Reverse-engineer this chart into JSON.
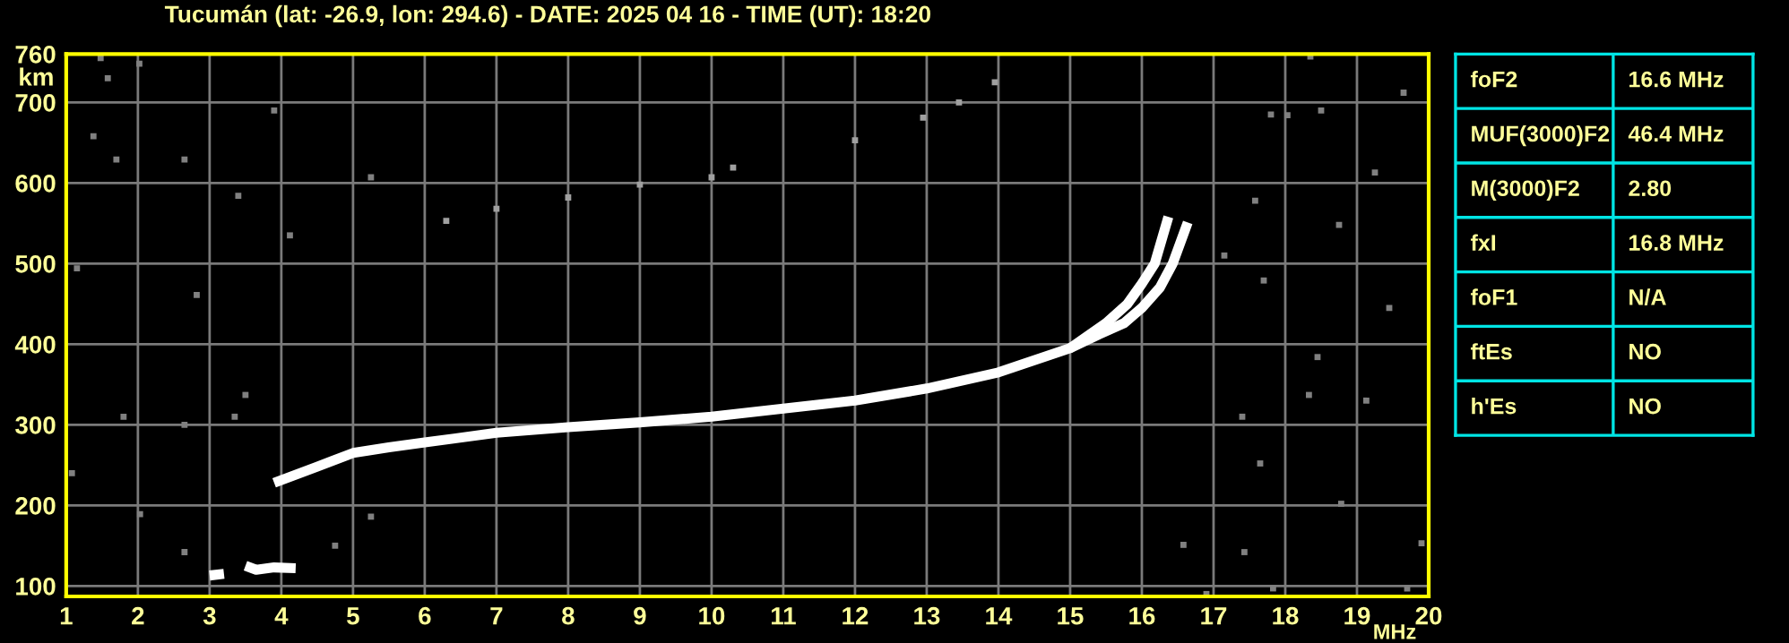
{
  "chart_data": [
    {
      "type": "line",
      "title": "Tucumán (lat: -26.9, lon: 294.6) - DATE: 2025 04 16 - TIME (UT): 18:20",
      "xlabel": "MHz",
      "ylabel": "km",
      "xlim": [
        1,
        20
      ],
      "ylim": [
        87,
        760
      ],
      "xticks": [
        1,
        2,
        3,
        4,
        5,
        6,
        7,
        8,
        9,
        10,
        11,
        12,
        13,
        14,
        15,
        16,
        17,
        18,
        19,
        20
      ],
      "yticks": [
        100,
        200,
        300,
        400,
        500,
        600,
        700,
        760
      ],
      "grid": true,
      "legend": false,
      "line_style": "solid",
      "series": [
        {
          "type": "line",
          "color": "#ffffff",
          "x": [
            3.9,
            4.2,
            4.5,
            5.0,
            5.5,
            6.0,
            7.0,
            8.0,
            9.0,
            10.0,
            11.0,
            12.0,
            13.0,
            14.0,
            15.0,
            15.5,
            15.8,
            16.0,
            16.18,
            16.37
          ],
          "values": [
            228,
            238,
            248,
            265,
            272,
            278,
            290,
            297,
            303,
            310,
            320,
            330,
            345,
            365,
            395,
            426,
            450,
            475,
            500,
            558
          ]
        },
        {
          "type": "line",
          "color": "#ffffff",
          "x": [
            15.0,
            15.4,
            15.75,
            16.0,
            16.25,
            16.43,
            16.64
          ],
          "values": [
            395,
            412,
            426,
            445,
            470,
            500,
            551
          ]
        },
        {
          "type": "line",
          "color": "#ffffff",
          "x": [
            3.0,
            3.2,
            3.3,
            3.5,
            3.65,
            3.9,
            4.2
          ],
          "values": [
            113,
            115,
            null,
            125,
            120,
            123,
            122
          ]
        },
        {
          "type": "scatter",
          "marker": "square",
          "color": "#a0a0a0",
          "x": [
            6.3,
            7.0,
            8.0,
            9.0,
            10.0,
            10.3,
            12.0,
            12.95,
            13.45,
            13.95
          ],
          "values": [
            553,
            568,
            582,
            598,
            607,
            619,
            653,
            681,
            700,
            725
          ]
        },
        {
          "type": "scatter",
          "marker": "square",
          "color": "#808080",
          "x": [
            1.48,
            1.58,
            2.02,
            1.38,
            1.7,
            2.65,
            3.4,
            3.9,
            5.25,
            4.12,
            1.15,
            2.82,
            1.08,
            1.8,
            2.65,
            3.35,
            3.5,
            2.03,
            2.65,
            5.25,
            4.75,
            18.35,
            18.75,
            18.03,
            17.8,
            17.58,
            19.25,
            19.65,
            18.5,
            17.15,
            17.7,
            19.45,
            18.45,
            17.4,
            17.65,
            18.78,
            17.43,
            17.83,
            16.9,
            19.7,
            19.9,
            18.33,
            19.13,
            16.58
          ],
          "values": [
            755,
            730,
            748,
            658,
            629,
            629,
            584,
            690,
            607,
            535,
            494,
            461,
            240,
            310,
            300,
            310,
            337,
            189,
            142,
            186,
            150,
            757,
            548,
            684,
            685,
            578,
            613,
            712,
            690,
            510,
            479,
            445,
            384,
            310,
            252,
            202,
            142,
            97,
            90,
            97,
            153,
            337,
            330,
            151
          ]
        }
      ]
    },
    {
      "type": "other",
      "categories": [
        "foF2",
        "MUF(3000)F2",
        "M(3000)F2",
        "fxI",
        "foF1",
        "ftEs",
        "h'Es"
      ],
      "value_labels": [
        "16.6 MHz",
        "46.4 MHz",
        "2.80",
        "16.8 MHz",
        "N/A",
        "NO",
        "NO"
      ]
    }
  ]
}
